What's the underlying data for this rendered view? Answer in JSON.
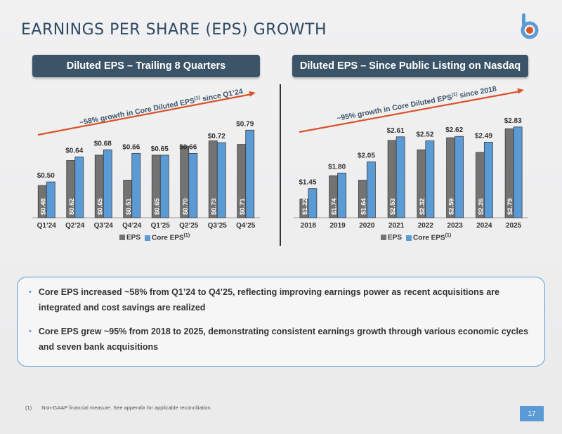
{
  "page": {
    "title": "EARNINGS PER SHARE (EPS) GROWTH",
    "page_number": "17",
    "footnote_marker": "(1)",
    "footnote_text": "Non-GAAP financial measure. See appendix for applicable reconciliation.",
    "bullets": [
      "Core EPS increased ~58% from Q1’24 to Q4’25, reflecting improving earnings power as recent acquisitions are integrated and cost savings are realized",
      "Core EPS grew ~95% from 2018 to 2025, demonstrating consistent earnings growth through various economic cycles and seven bank acquisitions"
    ]
  },
  "colors": {
    "eps": "#737373",
    "core_eps": "#5b9bd5",
    "arrow": "#d9532b",
    "header": "#3c5468"
  },
  "chart_data": [
    {
      "type": "bar",
      "title": "Diluted EPS – Trailing 8 Quarters",
      "categories": [
        "Q1’24",
        "Q2’24",
        "Q3’24",
        "Q4’24",
        "Q1’25",
        "Q2’25",
        "Q3’25",
        "Q4’25"
      ],
      "series": [
        {
          "name": "EPS",
          "values": [
            0.48,
            0.62,
            0.65,
            0.51,
            0.65,
            0.7,
            0.73,
            0.71
          ],
          "labels": [
            "$0.48",
            "$0.62",
            "$0.65",
            "$0.51",
            "$0.65",
            "$0.70",
            "$0.73",
            "$0.71"
          ]
        },
        {
          "name": "Core EPS",
          "values": [
            0.5,
            0.64,
            0.68,
            0.66,
            0.65,
            0.66,
            0.72,
            0.79
          ],
          "labels": [
            "$0.50",
            "$0.64",
            "$0.68",
            "$0.66",
            "$0.65",
            "$0.66",
            "$0.72",
            "$0.79"
          ]
        }
      ],
      "legend_superscript": "(1)",
      "annotation": {
        "text": "~58% growth in Core Diluted EPS",
        "sup": "(1)",
        "suffix": " since Q1’24"
      },
      "ylim": [
        0.3,
        0.85
      ],
      "grid": false,
      "legend": "bottom"
    },
    {
      "type": "bar",
      "title": "Diluted EPS – Since Public Listing on Nasdaq",
      "categories": [
        "2018",
        "2019",
        "2020",
        "2021",
        "2022",
        "2023",
        "2024",
        "2025"
      ],
      "series": [
        {
          "name": "EPS",
          "values": [
            1.22,
            1.74,
            1.64,
            2.53,
            2.32,
            2.59,
            2.26,
            2.79
          ],
          "labels": [
            "$1.22",
            "$1.74",
            "$1.64",
            "$2.53",
            "$2.32",
            "$2.59",
            "$2.26",
            "$2.79"
          ]
        },
        {
          "name": "Core EPS",
          "values": [
            1.45,
            1.8,
            2.05,
            2.61,
            2.52,
            2.62,
            2.49,
            2.83
          ],
          "labels": [
            "$1.45",
            "$1.80",
            "$2.05",
            "$2.61",
            "$2.52",
            "$2.62",
            "$2.49",
            "$2.83"
          ]
        }
      ],
      "legend_superscript": "(1)",
      "annotation": {
        "text": "~95% growth in Core Diluted EPS",
        "sup": "(1)",
        "suffix": " since 2018"
      },
      "ylim": [
        0.8,
        3.0
      ],
      "grid": false,
      "legend": "bottom"
    }
  ]
}
